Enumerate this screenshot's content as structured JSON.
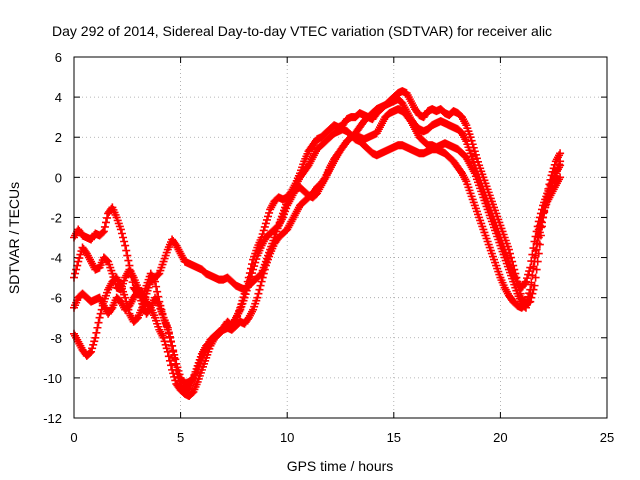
{
  "chart_data": {
    "type": "scatter",
    "title": "Day 292 of 2014, Sidereal Day-to-day VTEC variation (SDTVAR) for receiver alic",
    "xlabel": "GPS time / hours",
    "ylabel": "SDTVAR / TECUs",
    "xlim": [
      0,
      25
    ],
    "ylim": [
      -12,
      6
    ],
    "xticks": [
      "0",
      "5",
      "10",
      "15",
      "20",
      "25"
    ],
    "yticks": [
      "-12",
      "-10",
      "-8",
      "-6",
      "-4",
      "-2",
      "0",
      "2",
      "4",
      "6"
    ],
    "grid": true,
    "marker": "+",
    "color": "#ff0000",
    "series": [
      {
        "x": [
          0.0,
          0.2,
          0.4,
          0.6,
          0.8,
          1.0,
          1.2,
          1.4,
          1.6,
          1.8,
          2.0,
          2.2,
          2.4,
          2.6,
          2.8,
          3.0,
          3.2,
          3.4,
          3.6,
          3.8,
          4.0,
          4.2,
          4.4,
          4.6,
          4.8,
          5.0,
          5.2,
          5.4,
          5.6,
          5.8,
          6.0,
          6.2,
          6.4,
          6.6,
          6.8,
          7.0,
          7.2,
          7.4,
          7.6,
          7.8,
          8.0,
          8.2,
          8.4,
          8.6,
          8.8,
          9.0,
          9.2,
          9.4,
          9.6,
          9.8,
          10.0,
          10.2,
          10.4,
          10.6,
          10.8,
          11.0,
          11.2,
          11.4,
          11.6,
          11.8,
          12.0,
          12.2,
          12.4,
          12.6,
          12.8,
          13.0,
          13.2,
          13.4,
          13.6,
          13.8,
          14.0,
          14.2,
          14.4,
          14.6,
          14.8,
          15.0,
          15.2,
          15.4,
          15.6,
          15.8,
          16.0,
          16.2,
          16.4,
          16.6,
          16.8,
          17.0,
          17.2,
          17.4,
          17.6,
          17.8,
          18.0,
          18.2,
          18.4,
          18.6,
          18.8,
          19.0,
          19.2,
          19.4,
          19.6,
          19.8,
          20.0,
          20.2,
          20.4,
          20.6,
          20.8,
          21.0,
          21.2,
          21.4,
          21.6,
          21.8,
          22.0,
          22.2,
          22.4,
          22.6,
          22.8
        ],
        "y": [
          -3.0,
          -2.6,
          -2.9,
          -3.0,
          -3.1,
          -2.8,
          -2.9,
          -2.7,
          -1.8,
          -1.5,
          -2.0,
          -2.6,
          -3.4,
          -4.4,
          -5.5,
          -5.8,
          -5.7,
          -6.2,
          -6.5,
          -7.0,
          -7.6,
          -8.0,
          -8.7,
          -9.6,
          -10.3,
          -10.6,
          -10.8,
          -10.9,
          -10.7,
          -10.2,
          -9.6,
          -9.0,
          -8.4,
          -8.0,
          -7.8,
          -7.5,
          -7.2,
          -7.4,
          -7.1,
          -6.5,
          -5.8,
          -5.0,
          -4.1,
          -3.5,
          -3.0,
          -2.3,
          -1.6,
          -1.2,
          -1.0,
          -1.1,
          -1.0,
          -0.7,
          -0.3,
          0.2,
          0.8,
          1.3,
          1.6,
          1.9,
          2.0,
          2.2,
          2.4,
          2.6,
          2.5,
          2.6,
          2.9,
          3.0,
          3.0,
          3.2,
          3.1,
          3.0,
          2.9,
          3.2,
          3.4,
          3.6,
          3.8,
          4.0,
          4.2,
          4.3,
          4.2,
          3.8,
          3.4,
          3.1,
          3.0,
          3.3,
          3.4,
          3.3,
          3.4,
          3.2,
          3.1,
          3.3,
          3.2,
          3.0,
          2.6,
          2.0,
          1.3,
          0.6,
          0.0,
          -0.6,
          -1.2,
          -1.8,
          -2.4,
          -3.0,
          -3.6,
          -4.4,
          -5.2,
          -6.0,
          -6.3,
          -6.2,
          -5.4,
          -3.8,
          -2.0,
          -0.8,
          0.1,
          0.8,
          1.2
        ]
      },
      {
        "x": [
          0.0,
          0.2,
          0.4,
          0.6,
          0.8,
          1.0,
          1.2,
          1.4,
          1.6,
          1.8,
          2.0,
          2.2,
          2.4,
          2.6,
          2.8,
          3.0,
          3.2,
          3.4,
          3.6,
          3.8,
          4.0,
          4.2,
          4.4,
          4.6,
          4.8,
          5.0,
          5.2,
          5.4,
          5.6,
          5.8,
          6.0,
          6.2,
          6.4,
          6.6,
          6.8,
          7.0,
          7.2,
          7.4,
          7.6,
          7.8,
          8.0,
          8.2,
          8.4,
          8.6,
          8.8,
          9.0,
          9.2,
          9.4,
          9.6,
          9.8,
          10.0,
          10.2,
          10.4,
          10.6,
          10.8,
          11.0,
          11.2,
          11.4,
          11.6,
          11.8,
          12.0,
          12.2,
          12.4,
          12.6,
          12.8,
          13.0,
          13.2,
          13.4,
          13.6,
          13.8,
          14.0,
          14.2,
          14.4,
          14.6,
          14.8,
          15.0,
          15.2,
          15.4,
          15.6,
          15.8,
          16.0,
          16.2,
          16.4,
          16.6,
          16.8,
          17.0,
          17.2,
          17.4,
          17.6,
          17.8,
          18.0,
          18.2,
          18.4,
          18.6,
          18.8,
          19.0,
          19.2,
          19.4,
          19.6,
          19.8,
          20.0,
          20.2,
          20.4,
          20.6,
          20.8,
          21.0,
          21.2,
          21.4,
          21.6,
          21.8,
          22.0,
          22.2,
          22.4,
          22.6,
          22.8
        ],
        "y": [
          -5.0,
          -4.2,
          -3.5,
          -3.8,
          -4.2,
          -4.6,
          -4.5,
          -4.0,
          -4.2,
          -4.8,
          -5.5,
          -5.6,
          -5.0,
          -4.6,
          -5.0,
          -5.5,
          -6.0,
          -5.4,
          -4.8,
          -5.2,
          -6.2,
          -7.0,
          -7.6,
          -8.4,
          -9.3,
          -10.0,
          -10.3,
          -10.2,
          -10.0,
          -9.6,
          -9.0,
          -8.5,
          -8.1,
          -7.9,
          -7.7,
          -7.6,
          -7.5,
          -7.4,
          -7.0,
          -6.6,
          -6.0,
          -5.3,
          -4.6,
          -3.9,
          -3.4,
          -3.0,
          -2.8,
          -2.6,
          -2.4,
          -2.0,
          -1.4,
          -1.0,
          -0.6,
          -0.5,
          -0.7,
          -0.9,
          -1.0,
          -0.8,
          -0.4,
          0.0,
          0.5,
          0.9,
          1.2,
          1.5,
          1.8,
          2.0,
          2.2,
          2.5,
          2.8,
          3.0,
          3.2,
          3.4,
          3.5,
          3.6,
          3.7,
          3.8,
          3.9,
          3.7,
          3.3,
          2.9,
          2.6,
          2.4,
          2.3,
          2.4,
          2.6,
          2.7,
          2.8,
          2.7,
          2.6,
          2.5,
          2.4,
          2.2,
          1.8,
          1.2,
          0.6,
          0.0,
          -0.6,
          -1.2,
          -1.8,
          -2.4,
          -3.0,
          -3.6,
          -4.2,
          -4.8,
          -5.3,
          -5.5,
          -5.2,
          -4.5,
          -3.2,
          -2.2,
          -1.4,
          -0.8,
          -0.3,
          0.2,
          0.6
        ]
      },
      {
        "x": [
          0.0,
          0.2,
          0.4,
          0.6,
          0.8,
          1.0,
          1.2,
          1.4,
          1.6,
          1.8,
          2.0,
          2.2,
          2.4,
          2.6,
          2.8,
          3.0,
          3.2,
          3.4,
          3.6,
          3.8,
          4.0,
          4.2,
          4.4,
          4.6,
          4.8,
          5.0,
          5.2,
          5.4,
          5.6,
          5.8,
          6.0,
          6.2,
          6.4,
          6.6,
          6.8,
          7.0,
          7.2,
          7.4,
          7.6,
          7.8,
          8.0,
          8.2,
          8.4,
          8.6,
          8.8,
          9.0,
          9.2,
          9.4,
          9.6,
          9.8,
          10.0,
          10.2,
          10.4,
          10.6,
          10.8,
          11.0,
          11.2,
          11.4,
          11.6,
          11.8,
          12.0,
          12.2,
          12.4,
          12.6,
          12.8,
          13.0,
          13.2,
          13.4,
          13.6,
          13.8,
          14.0,
          14.2,
          14.4,
          14.6,
          14.8,
          15.0,
          15.2,
          15.4,
          15.6,
          15.8,
          16.0,
          16.2,
          16.4,
          16.6,
          16.8,
          17.0,
          17.2,
          17.4,
          17.6,
          17.8,
          18.0,
          18.2,
          18.4,
          18.6,
          18.8,
          19.0,
          19.2,
          19.4,
          19.6,
          19.8,
          20.0,
          20.2,
          20.4,
          20.6,
          20.8,
          21.0,
          21.2,
          21.4,
          21.6,
          21.8,
          22.0,
          22.2,
          22.4,
          22.6,
          22.8
        ],
        "y": [
          -6.5,
          -6.0,
          -5.8,
          -6.0,
          -6.2,
          -6.1,
          -6.0,
          -6.4,
          -6.8,
          -6.5,
          -6.0,
          -6.2,
          -6.6,
          -6.4,
          -6.0,
          -5.7,
          -6.3,
          -6.8,
          -6.5,
          -6.0,
          -6.4,
          -7.0,
          -7.5,
          -8.4,
          -9.6,
          -10.4,
          -10.7,
          -10.5,
          -10.0,
          -9.4,
          -8.8,
          -8.4,
          -8.2,
          -8.0,
          -7.8,
          -7.6,
          -7.5,
          -7.6,
          -7.4,
          -7.2,
          -7.3,
          -7.0,
          -6.6,
          -6.0,
          -5.2,
          -4.4,
          -3.8,
          -3.3,
          -3.0,
          -2.8,
          -2.6,
          -2.2,
          -1.8,
          -1.4,
          -1.2,
          -1.0,
          -0.8,
          -0.5,
          -0.3,
          0.0,
          0.4,
          0.8,
          1.2,
          1.5,
          1.8,
          2.0,
          2.1,
          2.0,
          1.9,
          2.0,
          2.1,
          2.2,
          2.6,
          3.0,
          3.2,
          3.3,
          3.4,
          3.3,
          3.1,
          2.8,
          2.4,
          2.0,
          1.8,
          1.6,
          1.6,
          1.5,
          1.6,
          1.7,
          1.6,
          1.5,
          1.4,
          1.2,
          1.0,
          0.6,
          0.2,
          -0.4,
          -1.0,
          -1.6,
          -2.2,
          -2.8,
          -3.4,
          -4.0,
          -4.6,
          -5.2,
          -5.8,
          -6.3,
          -6.5,
          -5.8,
          -4.0,
          -2.6,
          -1.8,
          -1.2,
          -0.8,
          -0.4,
          0.0
        ]
      },
      {
        "x": [
          0.0,
          0.2,
          0.4,
          0.6,
          0.8,
          1.0,
          1.2,
          1.4,
          1.6,
          1.8,
          2.0,
          2.2,
          2.4,
          2.6,
          2.8,
          3.0,
          3.2,
          3.4,
          3.6,
          3.8,
          4.0,
          4.2,
          4.4,
          4.6,
          4.8,
          5.0,
          5.2,
          5.4,
          5.6,
          5.8,
          6.0,
          6.2,
          6.4,
          6.6,
          6.8,
          7.0,
          7.2,
          7.4,
          7.6,
          7.8,
          8.0,
          8.2,
          8.4,
          8.6,
          8.8,
          9.0,
          9.2,
          9.4,
          9.6,
          9.8,
          10.0,
          10.2,
          10.4,
          10.6,
          10.8,
          11.0,
          11.2,
          11.4,
          11.6,
          11.8,
          12.0,
          12.2,
          12.4,
          12.6,
          12.8,
          13.0,
          13.2,
          13.4,
          13.6,
          13.8,
          14.0,
          14.2,
          14.4,
          14.6,
          14.8,
          15.0,
          15.2,
          15.4,
          15.6,
          15.8,
          16.0,
          16.2,
          16.4,
          16.6,
          16.8,
          17.0,
          17.2,
          17.4,
          17.6,
          17.8,
          18.0,
          18.2,
          18.4,
          18.6,
          18.8,
          19.0,
          19.2,
          19.4,
          19.6,
          19.8,
          20.0,
          20.2,
          20.4,
          20.6,
          20.8,
          21.0,
          21.2,
          21.4,
          21.6,
          21.8,
          22.0,
          22.2,
          22.4,
          22.6,
          22.8
        ],
        "y": [
          -7.8,
          -8.2,
          -8.6,
          -8.9,
          -8.7,
          -8.0,
          -7.0,
          -6.2,
          -5.6,
          -5.2,
          -5.0,
          -5.4,
          -6.0,
          -6.8,
          -7.2,
          -7.0,
          -6.5,
          -5.8,
          -5.2,
          -5.0,
          -4.8,
          -4.2,
          -3.6,
          -3.1,
          -3.4,
          -3.8,
          -4.2,
          -4.3,
          -4.4,
          -4.5,
          -4.6,
          -4.8,
          -4.9,
          -5.0,
          -5.1,
          -5.1,
          -5.0,
          -5.2,
          -5.4,
          -5.5,
          -5.6,
          -5.4,
          -5.2,
          -5.0,
          -4.8,
          -4.2,
          -3.6,
          -3.0,
          -2.4,
          -1.8,
          -1.2,
          -0.8,
          -0.4,
          0.0,
          0.3,
          0.6,
          1.0,
          1.4,
          1.6,
          1.8,
          2.0,
          2.2,
          2.3,
          2.4,
          2.3,
          2.1,
          1.9,
          1.8,
          1.6,
          1.4,
          1.2,
          1.1,
          1.2,
          1.3,
          1.4,
          1.5,
          1.6,
          1.6,
          1.5,
          1.4,
          1.3,
          1.2,
          1.2,
          1.3,
          1.4,
          1.4,
          1.3,
          1.2,
          1.0,
          0.8,
          0.5,
          0.2,
          -0.2,
          -0.8,
          -1.4,
          -2.0,
          -2.6,
          -3.2,
          -3.8,
          -4.4,
          -5.0,
          -5.5,
          -5.9,
          -6.2,
          -6.4,
          -6.5,
          -6.3,
          -5.6,
          -4.2,
          -3.0,
          -2.0,
          -1.0,
          -0.4,
          0.2,
          0.8
        ]
      }
    ]
  }
}
